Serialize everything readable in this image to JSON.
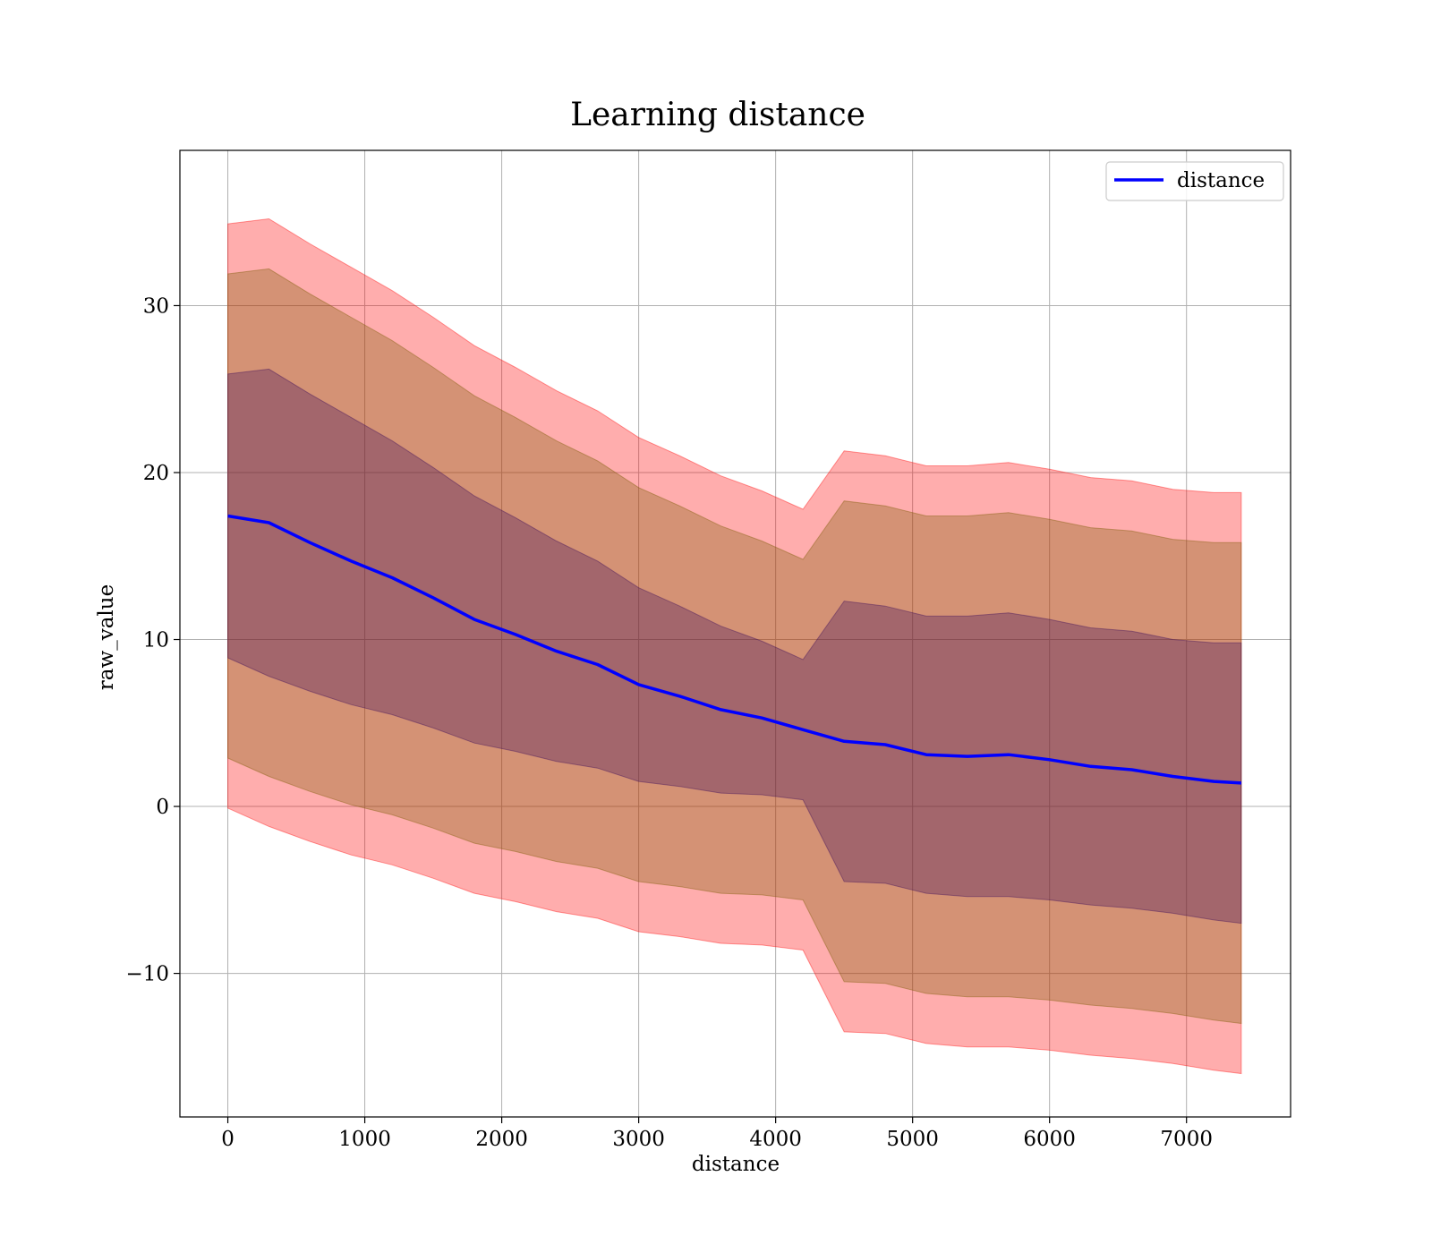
{
  "chart_data": {
    "type": "line",
    "title": "Learning distance",
    "xlabel": "distance",
    "ylabel": "raw_value",
    "xlim": [
      -350,
      7760
    ],
    "ylim": [
      -18.6,
      39.3
    ],
    "x_ticks": [
      0,
      1000,
      2000,
      3000,
      4000,
      5000,
      6000,
      7000
    ],
    "x_tick_labels": [
      "0",
      "1000",
      "2000",
      "3000",
      "4000",
      "5000",
      "6000",
      "7000"
    ],
    "y_ticks": [
      -10,
      0,
      10,
      20,
      30
    ],
    "y_tick_labels": [
      "−10",
      "0",
      "10",
      "20",
      "30"
    ],
    "grid": true,
    "legend": {
      "position": "top-right",
      "entries": [
        {
          "label": "distance",
          "color": "#0000ff"
        }
      ]
    },
    "x": [
      0,
      300,
      600,
      900,
      1200,
      1500,
      1800,
      2100,
      2400,
      2700,
      3000,
      3300,
      3600,
      3900,
      4200,
      4500,
      4800,
      5100,
      5400,
      5700,
      6000,
      6300,
      6600,
      6900,
      7200,
      7400
    ],
    "series": [
      {
        "name": "distance",
        "color": "#0000ff",
        "values": [
          17.4,
          17.0,
          15.8,
          14.7,
          13.7,
          12.5,
          11.2,
          10.3,
          9.3,
          8.5,
          7.3,
          6.6,
          5.8,
          5.3,
          4.6,
          3.9,
          3.7,
          3.1,
          3.0,
          3.1,
          2.8,
          2.4,
          2.2,
          1.8,
          1.5,
          1.4
        ]
      }
    ],
    "bands": [
      {
        "sigma": 3,
        "color": "#ff0000",
        "opacity": 0.32,
        "half_width": [
          17.5,
          18.2,
          17.9,
          17.6,
          17.2,
          16.8,
          16.4,
          16.0,
          15.6,
          15.2,
          14.8,
          14.4,
          14.0,
          13.6,
          13.2,
          17.4,
          17.3,
          17.3,
          17.4,
          17.5,
          17.4,
          17.3,
          17.3,
          17.2,
          17.3,
          17.4
        ]
      },
      {
        "sigma": 2,
        "color": "#7a5a00",
        "opacity": 0.32,
        "half_width": [
          14.5,
          15.2,
          14.9,
          14.6,
          14.2,
          13.8,
          13.4,
          13.0,
          12.6,
          12.2,
          11.8,
          11.4,
          11.0,
          10.6,
          10.2,
          14.4,
          14.3,
          14.3,
          14.4,
          14.5,
          14.4,
          14.3,
          14.3,
          14.2,
          14.3,
          14.4
        ]
      },
      {
        "sigma": 1,
        "color": "#3a0a5a",
        "opacity": 0.32,
        "half_width": [
          8.5,
          9.2,
          8.9,
          8.6,
          8.2,
          7.8,
          7.4,
          7.0,
          6.6,
          6.2,
          5.8,
          5.4,
          5.0,
          4.6,
          4.2,
          8.4,
          8.3,
          8.3,
          8.4,
          8.5,
          8.4,
          8.3,
          8.3,
          8.2,
          8.3,
          8.4
        ]
      }
    ]
  }
}
